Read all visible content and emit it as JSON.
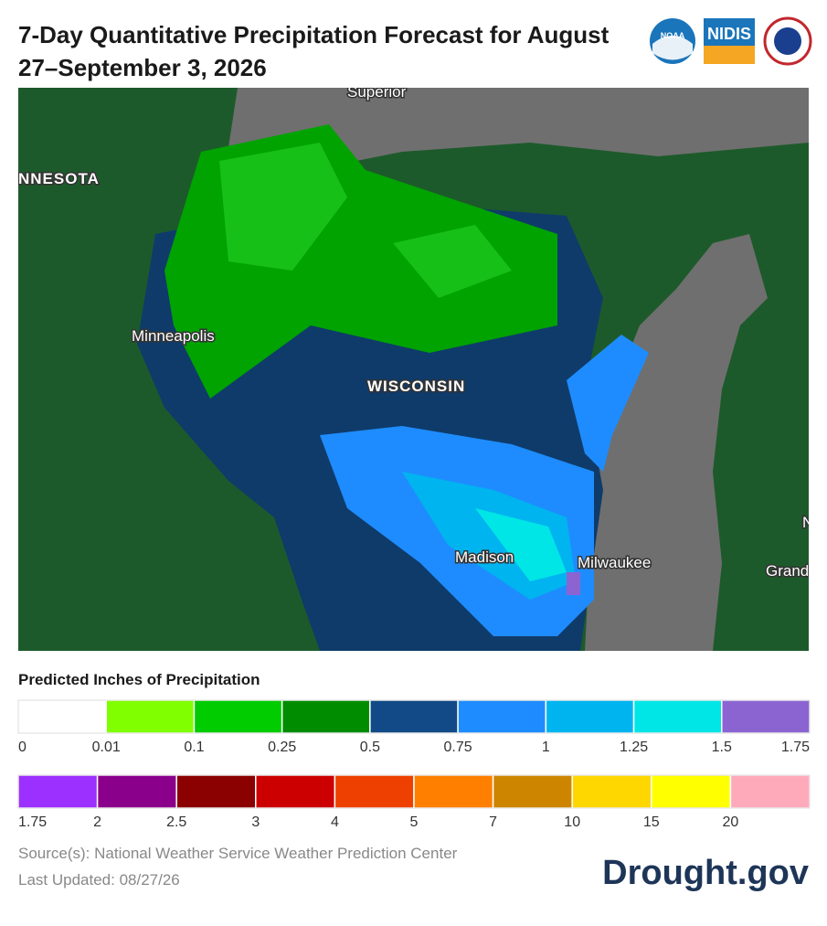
{
  "header": {
    "title": "7-Day Quantitative Precipitation Forecast for August 27–September 3, 2026",
    "logos": [
      "NOAA",
      "NIDIS"
    ]
  },
  "map": {
    "labels": [
      "Superior",
      "NNESOTA",
      "Minneapolis",
      "WISCONSIN",
      "Madison",
      "Milwaukee",
      "N",
      "Grand"
    ]
  },
  "legend": {
    "title": "Predicted Inches of Precipitation",
    "rows": [
      {
        "colors": [
          "#ffffff",
          "#80ff00",
          "#00cc00",
          "#008c00",
          "#114a86",
          "#1e8cff",
          "#00b4f0",
          "#00e6e6",
          "#8c64d2"
        ],
        "ticks": [
          "0",
          "0.01",
          "0.1",
          "0.25",
          "0.5",
          "0.75",
          "1",
          "1.25",
          "1.5",
          "1.75"
        ]
      },
      {
        "colors": [
          "#9b30ff",
          "#8b008b",
          "#8b0000",
          "#cc0000",
          "#ee4000",
          "#ff7f00",
          "#cd8500",
          "#ffd700",
          "#ffff00",
          "#ffaabb"
        ],
        "ticks": [
          "1.75",
          "2",
          "2.5",
          "3",
          "4",
          "5",
          "7",
          "10",
          "15",
          "20"
        ]
      }
    ]
  },
  "footer": {
    "source": "Source(s): National Weather Service Weather Prediction Center",
    "updated": "Last Updated: 08/27/26",
    "brand": "Drought.gov"
  }
}
